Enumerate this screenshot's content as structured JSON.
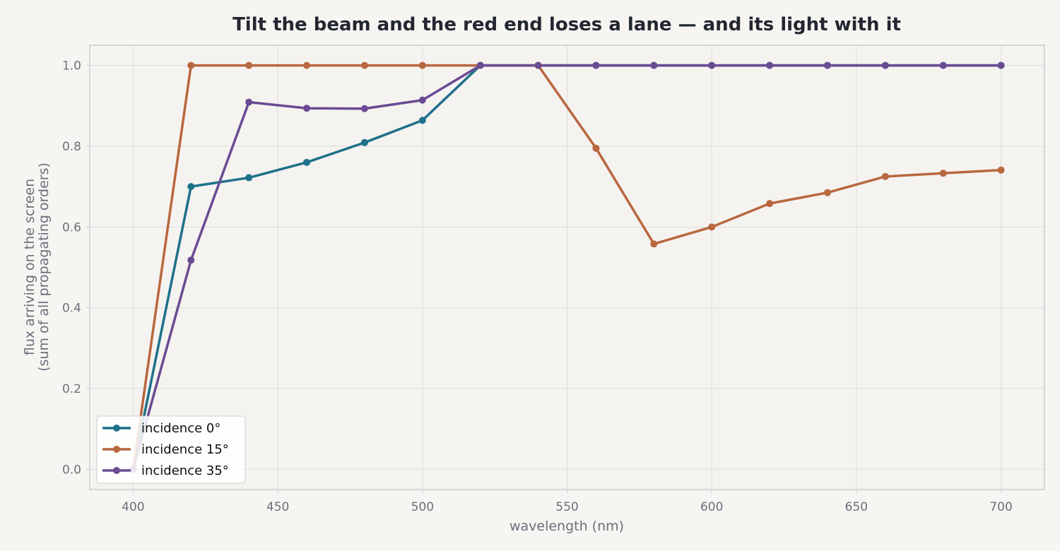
{
  "chart_data": {
    "type": "line",
    "title": "Tilt the beam and the red end loses a lane — and its light with it",
    "xlabel": "wavelength (nm)",
    "ylabel": [
      "flux arriving on the screen",
      "(sum of all propagating orders)"
    ],
    "xlim": [
      385,
      715
    ],
    "ylim": [
      -0.05,
      1.05
    ],
    "xticks": [
      400,
      450,
      500,
      550,
      600,
      650,
      700
    ],
    "yticks": [
      0.0,
      0.2,
      0.4,
      0.6,
      0.8,
      1.0
    ],
    "grid": true,
    "legend_position": "lower-left",
    "x": [
      400,
      420,
      440,
      460,
      480,
      500,
      520,
      540,
      560,
      580,
      600,
      620,
      640,
      660,
      680,
      700
    ],
    "series": [
      {
        "name": "incidence 0°",
        "color": "#1f7189",
        "values": [
          0.0,
          0.7,
          0.722,
          0.76,
          0.809,
          0.864,
          1.0,
          1.0,
          1.0,
          1.0,
          1.0,
          1.0,
          1.0,
          1.0,
          1.0,
          1.0
        ]
      },
      {
        "name": "incidence 15°",
        "color": "#b8673f",
        "values": [
          0.0,
          1.0,
          1.0,
          1.0,
          1.0,
          1.0,
          1.0,
          1.0,
          0.795,
          0.558,
          0.6,
          0.658,
          0.685,
          0.725,
          0.733,
          0.741
        ]
      },
      {
        "name": "incidence 35°",
        "color": "#6a4b93",
        "values": [
          0.0,
          0.518,
          0.909,
          0.894,
          0.893,
          0.914,
          1.0,
          1.0,
          1.0,
          1.0,
          1.0,
          1.0,
          1.0,
          1.0,
          1.0,
          1.0
        ]
      }
    ],
    "colors": {
      "background": "#f7f5f2",
      "plot_background": "#f5f3f0",
      "grid": "#dcdcdc",
      "frame": "#c9ccd0",
      "text": "#6b6f7b",
      "title": "#222730"
    }
  }
}
